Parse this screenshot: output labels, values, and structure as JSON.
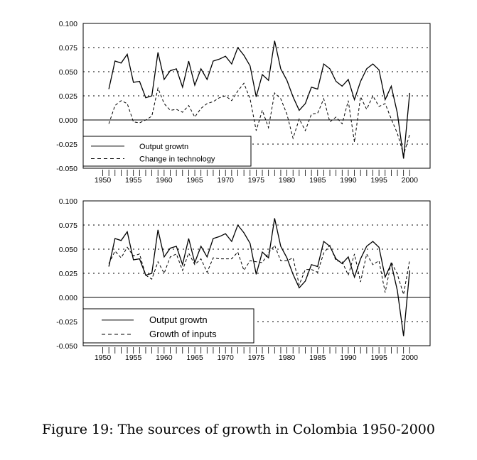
{
  "caption": "Figure 19: The sources of growth in Colombia 1950-2000",
  "chart_data": [
    {
      "type": "line",
      "x": [
        1951,
        1952,
        1953,
        1954,
        1955,
        1956,
        1957,
        1958,
        1959,
        1960,
        1961,
        1962,
        1963,
        1964,
        1965,
        1966,
        1967,
        1968,
        1969,
        1970,
        1971,
        1972,
        1973,
        1974,
        1975,
        1976,
        1977,
        1978,
        1979,
        1980,
        1981,
        1982,
        1983,
        1984,
        1985,
        1986,
        1987,
        1988,
        1989,
        1990,
        1991,
        1992,
        1993,
        1994,
        1995,
        1996,
        1997,
        1998,
        1999,
        2000
      ],
      "xlim": [
        1950,
        2000
      ],
      "ylim": [
        -0.05,
        0.1
      ],
      "yticks": [
        "0.100",
        "0.075",
        "0.050",
        "0.025",
        "0.000",
        "-0.025",
        "-0.050"
      ],
      "xticks": [
        "1950",
        "1955",
        "1960",
        "1965",
        "1970",
        "1975",
        "1980",
        "1985",
        "1990",
        "1995",
        "2000"
      ],
      "grid": "dotted horizontal",
      "legend_placement": "bottom-left",
      "series": [
        {
          "name": "Output growtn",
          "style": "solid",
          "values": [
            0.032,
            0.061,
            0.059,
            0.068,
            0.039,
            0.04,
            0.023,
            0.025,
            0.07,
            0.042,
            0.051,
            0.053,
            0.034,
            0.061,
            0.036,
            0.053,
            0.042,
            0.061,
            0.063,
            0.066,
            0.058,
            0.075,
            0.067,
            0.056,
            0.024,
            0.047,
            0.041,
            0.082,
            0.053,
            0.041,
            0.024,
            0.01,
            0.017,
            0.034,
            0.032,
            0.058,
            0.053,
            0.04,
            0.035,
            0.042,
            0.021,
            0.04,
            0.053,
            0.058,
            0.052,
            0.021,
            0.035,
            0.007,
            -0.04,
            0.028
          ]
        },
        {
          "name": "Change in technology",
          "style": "dashed",
          "values": [
            -0.004,
            0.015,
            0.02,
            0.017,
            -0.002,
            -0.003,
            0.0,
            0.004,
            0.033,
            0.017,
            0.01,
            0.011,
            0.008,
            0.015,
            0.003,
            0.012,
            0.017,
            0.019,
            0.023,
            0.025,
            0.02,
            0.03,
            0.038,
            0.022,
            -0.011,
            0.01,
            -0.008,
            0.028,
            0.022,
            0.006,
            -0.019,
            0.001,
            -0.011,
            0.006,
            0.007,
            0.022,
            -0.002,
            0.003,
            -0.004,
            0.02,
            -0.023,
            0.024,
            0.011,
            0.025,
            0.014,
            0.017,
            0.001,
            -0.014,
            -0.036,
            -0.015
          ]
        }
      ]
    },
    {
      "type": "line",
      "x": [
        1951,
        1952,
        1953,
        1954,
        1955,
        1956,
        1957,
        1958,
        1959,
        1960,
        1961,
        1962,
        1963,
        1964,
        1965,
        1966,
        1967,
        1968,
        1969,
        1970,
        1971,
        1972,
        1973,
        1974,
        1975,
        1976,
        1977,
        1978,
        1979,
        1980,
        1981,
        1982,
        1983,
        1984,
        1985,
        1986,
        1987,
        1988,
        1989,
        1990,
        1991,
        1992,
        1993,
        1994,
        1995,
        1996,
        1997,
        1998,
        1999,
        2000
      ],
      "xlim": [
        1950,
        2000
      ],
      "ylim": [
        -0.05,
        0.1
      ],
      "yticks": [
        "0.100",
        "0.075",
        "0.050",
        "0.025",
        "0.000",
        "-0.025",
        "-0.050"
      ],
      "xticks": [
        "1950",
        "1955",
        "1960",
        "1965",
        "1970",
        "1975",
        "1980",
        "1985",
        "1990",
        "1995",
        "2000"
      ],
      "grid": "dotted horizontal",
      "legend_placement": "bottom-left",
      "series": [
        {
          "name": "Output growtn",
          "style": "solid",
          "values": [
            0.032,
            0.061,
            0.059,
            0.068,
            0.039,
            0.04,
            0.023,
            0.025,
            0.07,
            0.042,
            0.051,
            0.053,
            0.034,
            0.061,
            0.036,
            0.053,
            0.042,
            0.061,
            0.063,
            0.066,
            0.058,
            0.075,
            0.067,
            0.056,
            0.024,
            0.047,
            0.041,
            0.082,
            0.053,
            0.041,
            0.024,
            0.01,
            0.017,
            0.034,
            0.032,
            0.058,
            0.053,
            0.04,
            0.035,
            0.042,
            0.021,
            0.04,
            0.053,
            0.058,
            0.052,
            0.021,
            0.035,
            0.007,
            -0.04,
            0.028
          ]
        },
        {
          "name": "Growth of inputs",
          "style": "dashed",
          "values": [
            0.035,
            0.048,
            0.041,
            0.052,
            0.043,
            0.045,
            0.023,
            0.019,
            0.037,
            0.025,
            0.042,
            0.045,
            0.028,
            0.046,
            0.034,
            0.04,
            0.026,
            0.041,
            0.04,
            0.04,
            0.04,
            0.047,
            0.028,
            0.038,
            0.037,
            0.036,
            0.046,
            0.054,
            0.038,
            0.038,
            0.041,
            0.013,
            0.029,
            0.029,
            0.026,
            0.046,
            0.054,
            0.038,
            0.037,
            0.023,
            0.045,
            0.016,
            0.045,
            0.034,
            0.038,
            0.005,
            0.037,
            0.024,
            0.003,
            0.039
          ]
        }
      ]
    }
  ]
}
